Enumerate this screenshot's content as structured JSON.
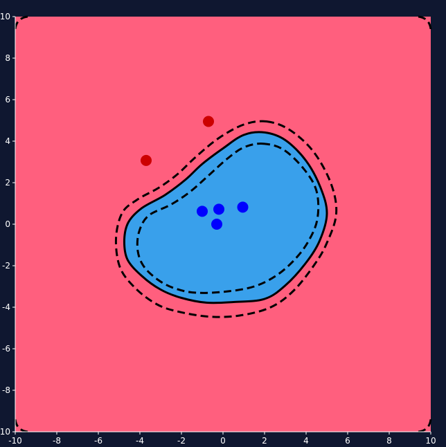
{
  "chart_data": {
    "type": "scatter",
    "title": "",
    "xlabel": "",
    "ylabel": "",
    "xlim": [
      -10,
      10
    ],
    "ylim": [
      -10,
      10
    ],
    "x_ticks": [
      -10,
      -8,
      -6,
      -4,
      -2,
      0,
      2,
      4,
      6,
      8,
      10
    ],
    "y_ticks": [
      -10,
      -8,
      -6,
      -4,
      -2,
      0,
      2,
      4,
      6,
      8,
      10
    ],
    "grid": false,
    "legend": "none",
    "colors": {
      "background": "#0f1730",
      "outside_region": "#ff5f7e",
      "inside_region": "#39a0eb",
      "class_red": "#cc0000",
      "class_blue": "#0000ff",
      "contour": "#000000",
      "axis": "#ffffff"
    },
    "series": [
      {
        "class": "red",
        "points": [
          [
            -0.7,
            4.95
          ],
          [
            -3.7,
            3.07
          ]
        ]
      },
      {
        "class": "blue",
        "points": [
          [
            -1.0,
            0.62
          ],
          [
            -0.2,
            0.72
          ],
          [
            0.95,
            0.82
          ],
          [
            -0.3,
            0.0
          ]
        ]
      }
    ],
    "contours": [
      {
        "level": "decision",
        "style": "solid",
        "points": [
          [
            2.0,
            4.42
          ],
          [
            3.0,
            4.05
          ],
          [
            4.0,
            3.05
          ],
          [
            4.7,
            1.75
          ],
          [
            5.0,
            0.5
          ],
          [
            4.65,
            -0.8
          ],
          [
            4.0,
            -1.85
          ],
          [
            3.0,
            -2.95
          ],
          [
            2.0,
            -3.6
          ],
          [
            0.5,
            -3.75
          ],
          [
            -0.8,
            -3.78
          ],
          [
            -2.0,
            -3.55
          ],
          [
            -3.0,
            -3.15
          ],
          [
            -3.9,
            -2.5
          ],
          [
            -4.6,
            -1.7
          ],
          [
            -4.75,
            -0.75
          ],
          [
            -4.55,
            0.1
          ],
          [
            -3.9,
            0.78
          ],
          [
            -2.8,
            1.4
          ],
          [
            -1.8,
            2.15
          ],
          [
            -1.0,
            2.9
          ],
          [
            0.0,
            3.65
          ],
          [
            1.0,
            4.3
          ]
        ]
      },
      {
        "level": "inner-margin",
        "style": "dashed",
        "points": [
          [
            1.9,
            3.88
          ],
          [
            2.9,
            3.6
          ],
          [
            3.9,
            2.65
          ],
          [
            4.5,
            1.6
          ],
          [
            4.55,
            0.3
          ],
          [
            4.15,
            -0.75
          ],
          [
            3.5,
            -1.65
          ],
          [
            2.6,
            -2.45
          ],
          [
            1.5,
            -3.0
          ],
          [
            0.1,
            -3.25
          ],
          [
            -1.3,
            -3.3
          ],
          [
            -2.3,
            -3.1
          ],
          [
            -3.1,
            -2.7
          ],
          [
            -3.8,
            -2.05
          ],
          [
            -4.1,
            -1.3
          ],
          [
            -4.05,
            -0.4
          ],
          [
            -3.6,
            0.4
          ],
          [
            -2.5,
            0.95
          ],
          [
            -1.6,
            1.55
          ],
          [
            -0.8,
            2.25
          ],
          [
            0.2,
            3.15
          ],
          [
            1.0,
            3.7
          ]
        ]
      },
      {
        "level": "outer-margin",
        "style": "dashed",
        "points": [
          [
            2.1,
            4.95
          ],
          [
            3.2,
            4.55
          ],
          [
            4.35,
            3.5
          ],
          [
            5.2,
            1.95
          ],
          [
            5.45,
            0.5
          ],
          [
            5.0,
            -0.9
          ],
          [
            4.4,
            -1.95
          ],
          [
            3.4,
            -3.2
          ],
          [
            2.3,
            -4.0
          ],
          [
            0.8,
            -4.4
          ],
          [
            -0.7,
            -4.45
          ],
          [
            -2.2,
            -4.2
          ],
          [
            -3.2,
            -3.85
          ],
          [
            -4.2,
            -3.1
          ],
          [
            -4.95,
            -2.1
          ],
          [
            -5.15,
            -0.7
          ],
          [
            -4.85,
            0.55
          ],
          [
            -4.1,
            1.2
          ],
          [
            -3.1,
            1.75
          ],
          [
            -2.2,
            2.4
          ],
          [
            -1.3,
            3.25
          ],
          [
            -0.2,
            4.15
          ],
          [
            1.0,
            4.8
          ]
        ]
      }
    ]
  }
}
